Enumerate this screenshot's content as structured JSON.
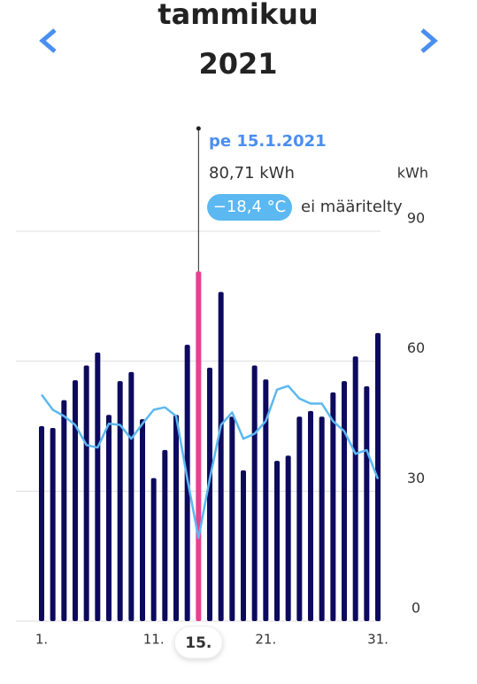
{
  "chart_data": {
    "type": "bar",
    "title": "tammikuu",
    "subtitle": "2021",
    "y_label": "kWh",
    "categories": [
      "1.",
      null,
      null,
      null,
      null,
      null,
      null,
      null,
      null,
      null,
      "11.",
      null,
      null,
      null,
      "15.",
      null,
      null,
      null,
      null,
      null,
      "21.",
      null,
      null,
      null,
      null,
      null,
      null,
      null,
      null,
      null,
      "31."
    ],
    "series": [
      {
        "type": "bar",
        "color": "#0d0a5e",
        "highlight_color": "#e8408f",
        "values": [
          45,
          44.6,
          51,
          55.6,
          59,
          62,
          47.6,
          55.4,
          57.5,
          46.6,
          33,
          39.5,
          47.6,
          63.8,
          80.71,
          58.5,
          76,
          47.2,
          34.8,
          59,
          55.8,
          37,
          38.2,
          47.2,
          48.5,
          47.2,
          52.8,
          55.4,
          61.1,
          54.2,
          66.5
        ]
      },
      {
        "type": "line",
        "axis": "y2",
        "color": "#5bb8f0",
        "values": [
          -7.0,
          -8.2,
          -8.7,
          -9.4,
          -11.0,
          -11.2,
          -9.3,
          -9.4,
          -10.5,
          -9.3,
          -8.2,
          -8.0,
          -8.7,
          -13.7,
          -18.4,
          -13.7,
          -9.4,
          -8.4,
          -10.5,
          -10.1,
          -9.1,
          -6.6,
          -6.3,
          -7.3,
          -7.7,
          -7.7,
          -9.1,
          -9.9,
          -11.7,
          -11.4,
          -13.7
        ]
      }
    ],
    "highlight": 14,
    "ylim": [
      0,
      90
    ],
    "yticks": [
      0,
      30,
      60,
      90
    ],
    "y2lim": [
      -25,
      6
    ],
    "grid": true,
    "tooltip": {
      "date": "pe 15.1.2021",
      "value_label": "80,71 kWh",
      "temperature_label": "−18,4 °C",
      "note": "ei määritelty"
    }
  }
}
